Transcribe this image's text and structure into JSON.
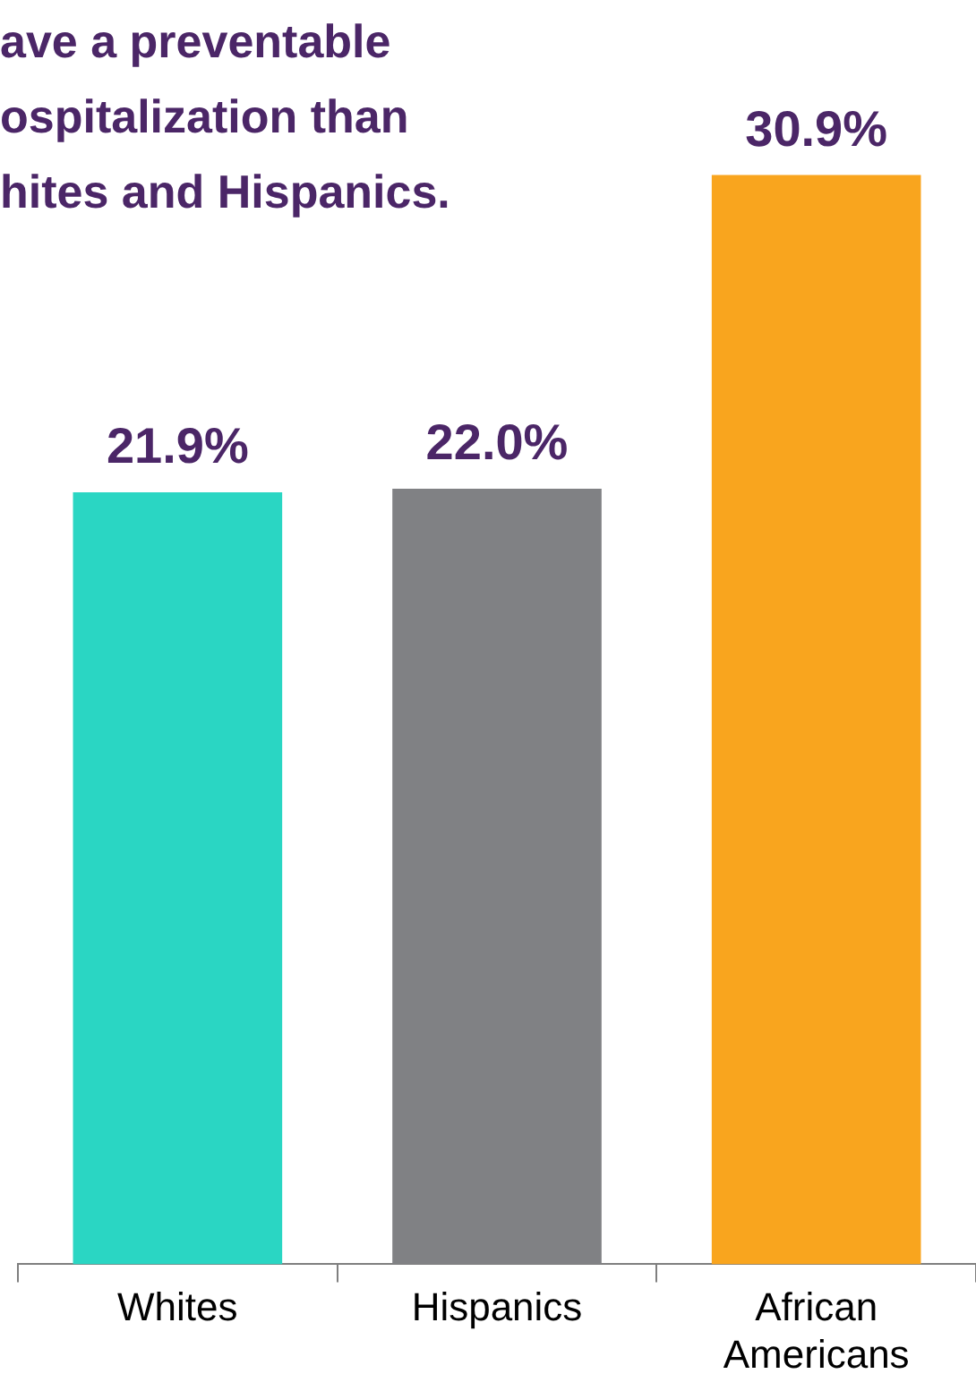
{
  "chart_data": {
    "type": "bar",
    "title": "ave a preventable\nospitalization than\nhites and Hispanics.",
    "categories": [
      "Whites",
      "Hispanics",
      "African Americans"
    ],
    "values": [
      21.9,
      22.0,
      30.9
    ],
    "colors": [
      "#2ad6c3",
      "#808184",
      "#f9a51e"
    ],
    "value_labels": [
      "21.9%",
      "22.0%",
      "30.9%"
    ],
    "tick_labels": "x",
    "grid": false,
    "legend": false
  }
}
